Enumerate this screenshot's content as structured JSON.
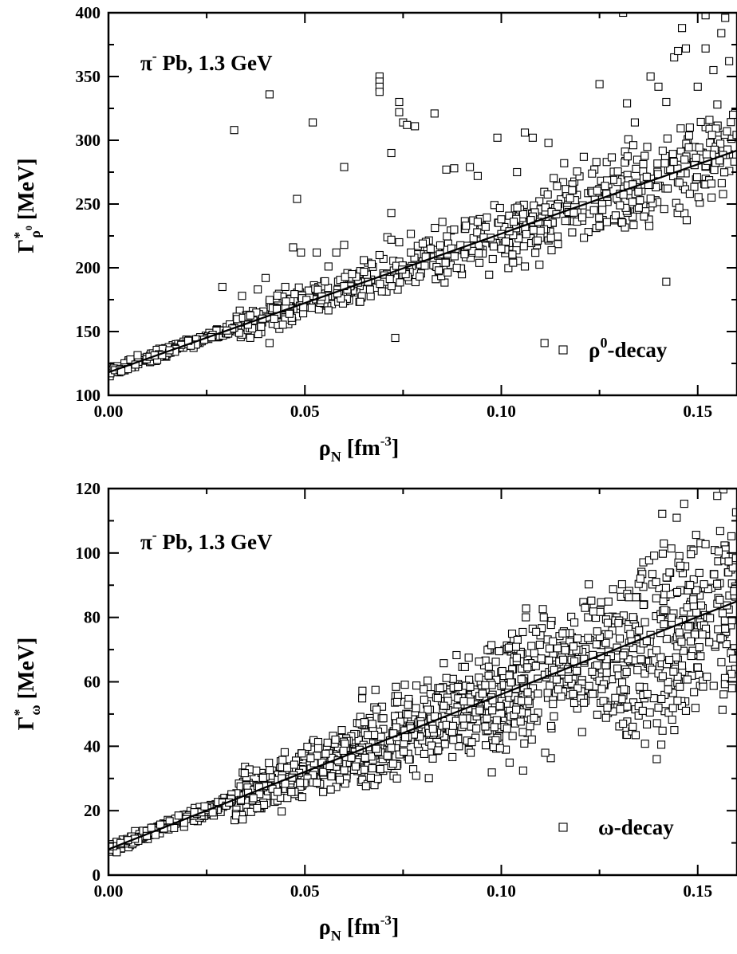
{
  "chart_data": [
    {
      "type": "scatter",
      "id": "top",
      "xlabel": {
        "main": "ρ",
        "sub": "N",
        "bracket": "[fm",
        "sup": "-3",
        "close": "]"
      },
      "ylabel": {
        "main": "Γ",
        "star": "*",
        "sub": "ρ",
        "subsup": "0",
        "unit": "[MeV]"
      },
      "xlim": [
        0,
        0.16
      ],
      "ylim": [
        100,
        400
      ],
      "xticks": [
        {
          "v": 0.0,
          "label": "0.00"
        },
        {
          "v": 0.05,
          "label": "0.05"
        },
        {
          "v": 0.1,
          "label": "0.10"
        },
        {
          "v": 0.15,
          "label": "0.15"
        }
      ],
      "yticks": [
        {
          "v": 100,
          "label": "100"
        },
        {
          "v": 150,
          "label": "150"
        },
        {
          "v": 200,
          "label": "200"
        },
        {
          "v": 250,
          "label": "250"
        },
        {
          "v": 300,
          "label": "300"
        },
        {
          "v": 350,
          "label": "350"
        },
        {
          "v": 400,
          "label": "400"
        }
      ],
      "reaction": {
        "pi": "π",
        "sup": "-",
        "rest": " Pb,  1.3 GeV"
      },
      "legend": {
        "greek": "ρ",
        "sup": "0",
        "rest": "-decay"
      },
      "fit_line": {
        "x": [
          0.0,
          0.16
        ],
        "y": [
          118,
          292
        ]
      },
      "band": {
        "slope": 1088,
        "intercept": 118,
        "spread": [
          4,
          12,
          18,
          26,
          32
        ]
      },
      "outliers": [
        [
          0.032,
          308
        ],
        [
          0.041,
          336
        ],
        [
          0.052,
          314
        ],
        [
          0.06,
          279
        ],
        [
          0.069,
          350
        ],
        [
          0.069,
          346
        ],
        [
          0.069,
          342
        ],
        [
          0.069,
          338
        ],
        [
          0.072,
          290
        ],
        [
          0.072,
          243
        ],
        [
          0.074,
          330
        ],
        [
          0.074,
          322
        ],
        [
          0.075,
          314
        ],
        [
          0.076,
          312
        ],
        [
          0.078,
          311
        ],
        [
          0.083,
          321
        ],
        [
          0.086,
          277
        ],
        [
          0.088,
          278
        ],
        [
          0.092,
          279
        ],
        [
          0.094,
          272
        ],
        [
          0.099,
          302
        ],
        [
          0.104,
          275
        ],
        [
          0.106,
          306
        ],
        [
          0.108,
          302
        ],
        [
          0.112,
          298
        ],
        [
          0.116,
          282
        ],
        [
          0.121,
          287
        ],
        [
          0.125,
          344
        ],
        [
          0.132,
          329
        ],
        [
          0.134,
          314
        ],
        [
          0.138,
          350
        ],
        [
          0.14,
          342
        ],
        [
          0.142,
          330
        ],
        [
          0.144,
          365
        ],
        [
          0.146,
          388
        ],
        [
          0.148,
          310
        ],
        [
          0.15,
          342
        ],
        [
          0.152,
          372
        ],
        [
          0.154,
          355
        ],
        [
          0.156,
          384
        ],
        [
          0.157,
          396
        ],
        [
          0.158,
          362
        ],
        [
          0.159,
          320
        ],
        [
          0.152,
          398
        ],
        [
          0.131,
          400
        ],
        [
          0.145,
          370
        ],
        [
          0.147,
          372
        ],
        [
          0.155,
          328
        ],
        [
          0.029,
          185
        ],
        [
          0.034,
          178
        ],
        [
          0.038,
          183
        ],
        [
          0.04,
          192
        ],
        [
          0.045,
          185
        ],
        [
          0.047,
          216
        ],
        [
          0.048,
          254
        ],
        [
          0.049,
          212
        ],
        [
          0.053,
          212
        ],
        [
          0.056,
          201
        ],
        [
          0.058,
          212
        ],
        [
          0.06,
          218
        ],
        [
          0.062,
          195
        ],
        [
          0.065,
          206
        ],
        [
          0.067,
          203
        ],
        [
          0.069,
          210
        ],
        [
          0.071,
          224
        ],
        [
          0.072,
          222
        ],
        [
          0.074,
          220
        ],
        [
          0.077,
          212
        ],
        [
          0.08,
          219
        ],
        [
          0.082,
          215
        ],
        [
          0.085,
          236
        ],
        [
          0.088,
          230
        ],
        [
          0.091,
          233
        ],
        [
          0.094,
          236
        ],
        [
          0.096,
          232
        ],
        [
          0.041,
          141
        ],
        [
          0.073,
          145
        ],
        [
          0.111,
          141
        ],
        [
          0.142,
          189
        ],
        [
          0.1,
          215
        ],
        [
          0.103,
          204
        ],
        [
          0.106,
          201
        ],
        [
          0.11,
          229
        ],
        [
          0.114,
          242
        ]
      ]
    },
    {
      "type": "scatter",
      "id": "bottom",
      "xlabel": {
        "main": "ρ",
        "sub": "N",
        "bracket": "[fm",
        "sup": "-3",
        "close": "]"
      },
      "ylabel": {
        "main": "Γ",
        "star": "*",
        "sub": "ω",
        "subsup": "",
        "unit": "[MeV]"
      },
      "xlim": [
        0,
        0.16
      ],
      "ylim": [
        0,
        120
      ],
      "xticks": [
        {
          "v": 0.0,
          "label": "0.00"
        },
        {
          "v": 0.05,
          "label": "0.05"
        },
        {
          "v": 0.1,
          "label": "0.10"
        },
        {
          "v": 0.15,
          "label": "0.15"
        }
      ],
      "yticks": [
        {
          "v": 0,
          "label": "0"
        },
        {
          "v": 20,
          "label": "20"
        },
        {
          "v": 40,
          "label": "40"
        },
        {
          "v": 60,
          "label": "60"
        },
        {
          "v": 80,
          "label": "80"
        },
        {
          "v": 100,
          "label": "100"
        },
        {
          "v": 120,
          "label": "120"
        }
      ],
      "reaction": {
        "pi": "π",
        "sup": "-",
        "rest": " Pb,  1.3 GeV"
      },
      "legend": {
        "greek": "ω",
        "sup": "",
        "rest": "-decay"
      },
      "fit_line": {
        "x": [
          0.0,
          0.16
        ],
        "y": [
          8,
          85
        ]
      },
      "band": {
        "slope": 480,
        "intercept": 8,
        "spread": [
          2,
          8,
          14,
          20,
          30
        ]
      },
      "outliers": [
        [
          0.126,
          54
        ],
        [
          0.127,
          52
        ],
        [
          0.131,
          47
        ],
        [
          0.129,
          55
        ],
        [
          0.136,
          51
        ],
        [
          0.14,
          52
        ],
        [
          0.147,
          51
        ]
      ]
    }
  ]
}
